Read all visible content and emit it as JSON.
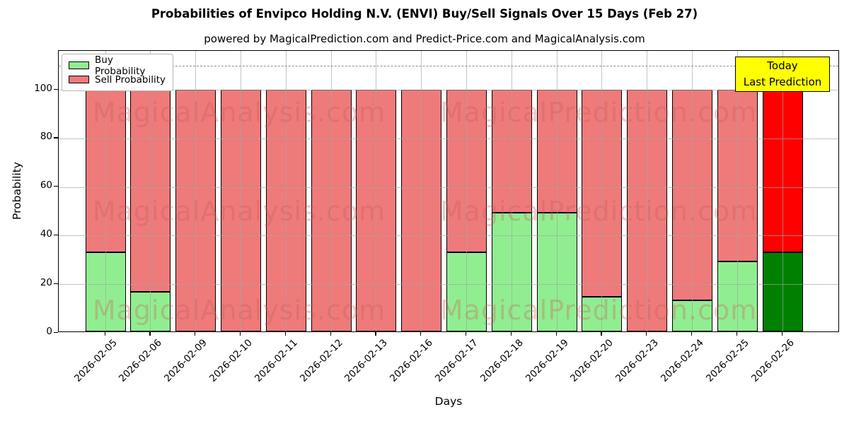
{
  "title": "Probabilities of Envipco Holding N.V. (ENVI) Buy/Sell Signals Over 15 Days (Feb 27)",
  "subtitle": "powered by MagicalPrediction.com and Predict-Price.com and MagicalAnalysis.com",
  "legend": {
    "buy_label": "Buy Probability",
    "sell_label": "Sell Probability"
  },
  "annotation": {
    "line1": "Today",
    "line2": "Last Prediction",
    "bg_color": "#FFFF00"
  },
  "axes": {
    "ylabel": "Probability",
    "xlabel": "Days",
    "yticks": [
      0,
      20,
      40,
      60,
      80,
      100
    ]
  },
  "watermarks": {
    "left_text": "MagicalAnalysis.com",
    "right_text": "MagicalPrediction.com"
  },
  "colors": {
    "buy": "#90EE90",
    "sell": "#EE7A7A",
    "today_buy": "#008000",
    "today_sell": "#FF0000",
    "grid": "#A5A5A5",
    "dashed_line": "#8A8A8A",
    "watermark": "#CD5C5C",
    "bar_edge": "#000000"
  },
  "chart_data": {
    "type": "bar",
    "stacked": true,
    "title": "Probabilities of Envipco Holding N.V. (ENVI) Buy/Sell Signals Over 15 Days (Feb 27)",
    "xlabel": "Days",
    "ylabel": "Probability",
    "ylim": [
      0,
      116
    ],
    "dashed_line_y": 110,
    "grid": true,
    "legend_position": "upper left",
    "categories": [
      "2026-02-05",
      "2026-02-06",
      "2026-02-09",
      "2026-02-10",
      "2026-02-11",
      "2026-02-12",
      "2026-02-13",
      "2026-02-16",
      "2026-02-17",
      "2026-02-18",
      "2026-02-19",
      "2026-02-20",
      "2026-02-23",
      "2026-02-24",
      "2026-02-25",
      "2026-02-26"
    ],
    "series": [
      {
        "name": "Buy Probability",
        "values": [
          33,
          16.5,
          0,
          0,
          0,
          0,
          0,
          0,
          32.8,
          49.4,
          49.4,
          14.4,
          0,
          13,
          29,
          33
        ]
      },
      {
        "name": "Sell Probability",
        "values": [
          67,
          83.5,
          100,
          100,
          100,
          100,
          100,
          100,
          67.2,
          50.6,
          50.6,
          85.6,
          100,
          87,
          71,
          67
        ]
      }
    ],
    "today_bar_index": 15
  }
}
